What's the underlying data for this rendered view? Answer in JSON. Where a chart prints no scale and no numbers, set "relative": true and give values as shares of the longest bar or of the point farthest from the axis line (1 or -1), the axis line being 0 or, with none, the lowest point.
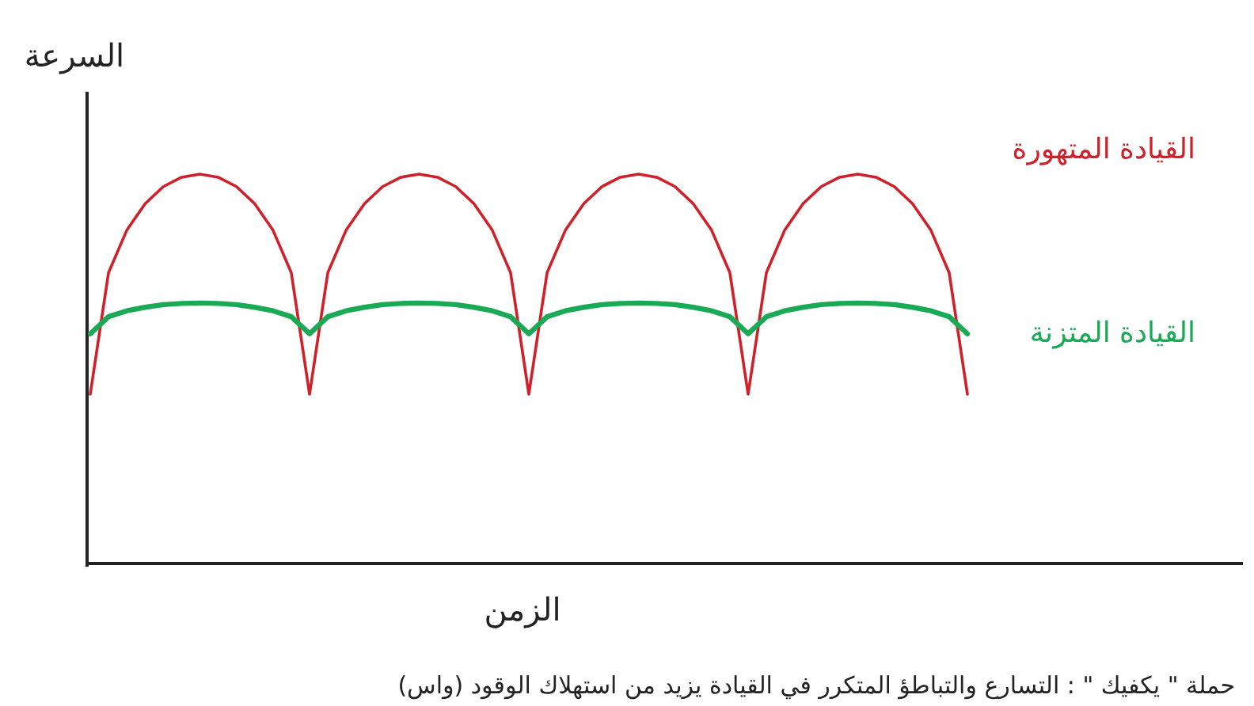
{
  "chart_data": {
    "type": "line",
    "relative": true,
    "categories": [
      null,
      null,
      null,
      null,
      null,
      null,
      null,
      null,
      null,
      null,
      null,
      null,
      null,
      null,
      null,
      null,
      null,
      null,
      null,
      null,
      null,
      null,
      null,
      null,
      null,
      null,
      null,
      null,
      null,
      null,
      null,
      null,
      null,
      null,
      null,
      null,
      null,
      null,
      null,
      null,
      null,
      null,
      null,
      null,
      null,
      null,
      null,
      null,
      null
    ],
    "series": [
      {
        "name": "القيادة المتهورة",
        "color": "#d0202a",
        "values": [
          0.435,
          0.747,
          0.856,
          0.924,
          0.968,
          0.992,
          1,
          0.992,
          0.968,
          0.924,
          0.856,
          0.747,
          0.435,
          0.747,
          0.856,
          0.924,
          0.968,
          0.992,
          1,
          0.992,
          0.968,
          0.924,
          0.856,
          0.747,
          0.435,
          0.747,
          0.856,
          0.924,
          0.968,
          0.992,
          1,
          0.992,
          0.968,
          0.924,
          0.856,
          0.747,
          0.435,
          0.747,
          0.856,
          0.924,
          0.968,
          0.992,
          1,
          0.992,
          0.968,
          0.924,
          0.856,
          0.747,
          0.435
        ]
      },
      {
        "name": "القيادة المتزنة",
        "color": "#1aaa55",
        "values": [
          0.59,
          0.634,
          0.649,
          0.658,
          0.665,
          0.668,
          0.669,
          0.668,
          0.665,
          0.658,
          0.649,
          0.634,
          0.59,
          0.634,
          0.649,
          0.658,
          0.665,
          0.668,
          0.669,
          0.668,
          0.665,
          0.658,
          0.649,
          0.634,
          0.59,
          0.634,
          0.649,
          0.658,
          0.665,
          0.668,
          0.669,
          0.668,
          0.665,
          0.658,
          0.649,
          0.634,
          0.59,
          0.634,
          0.649,
          0.658,
          0.665,
          0.668,
          0.669,
          0.668,
          0.665,
          0.658,
          0.649,
          0.634,
          0.59
        ]
      }
    ],
    "xlabel": "الزمن",
    "ylabel": "السرعة",
    "annotations": [
      "حملة \" يكفيك \" : التسارع والتباطؤ المتكرر في القيادة يزيد من استهلاك الوقود (واس)"
    ]
  }
}
